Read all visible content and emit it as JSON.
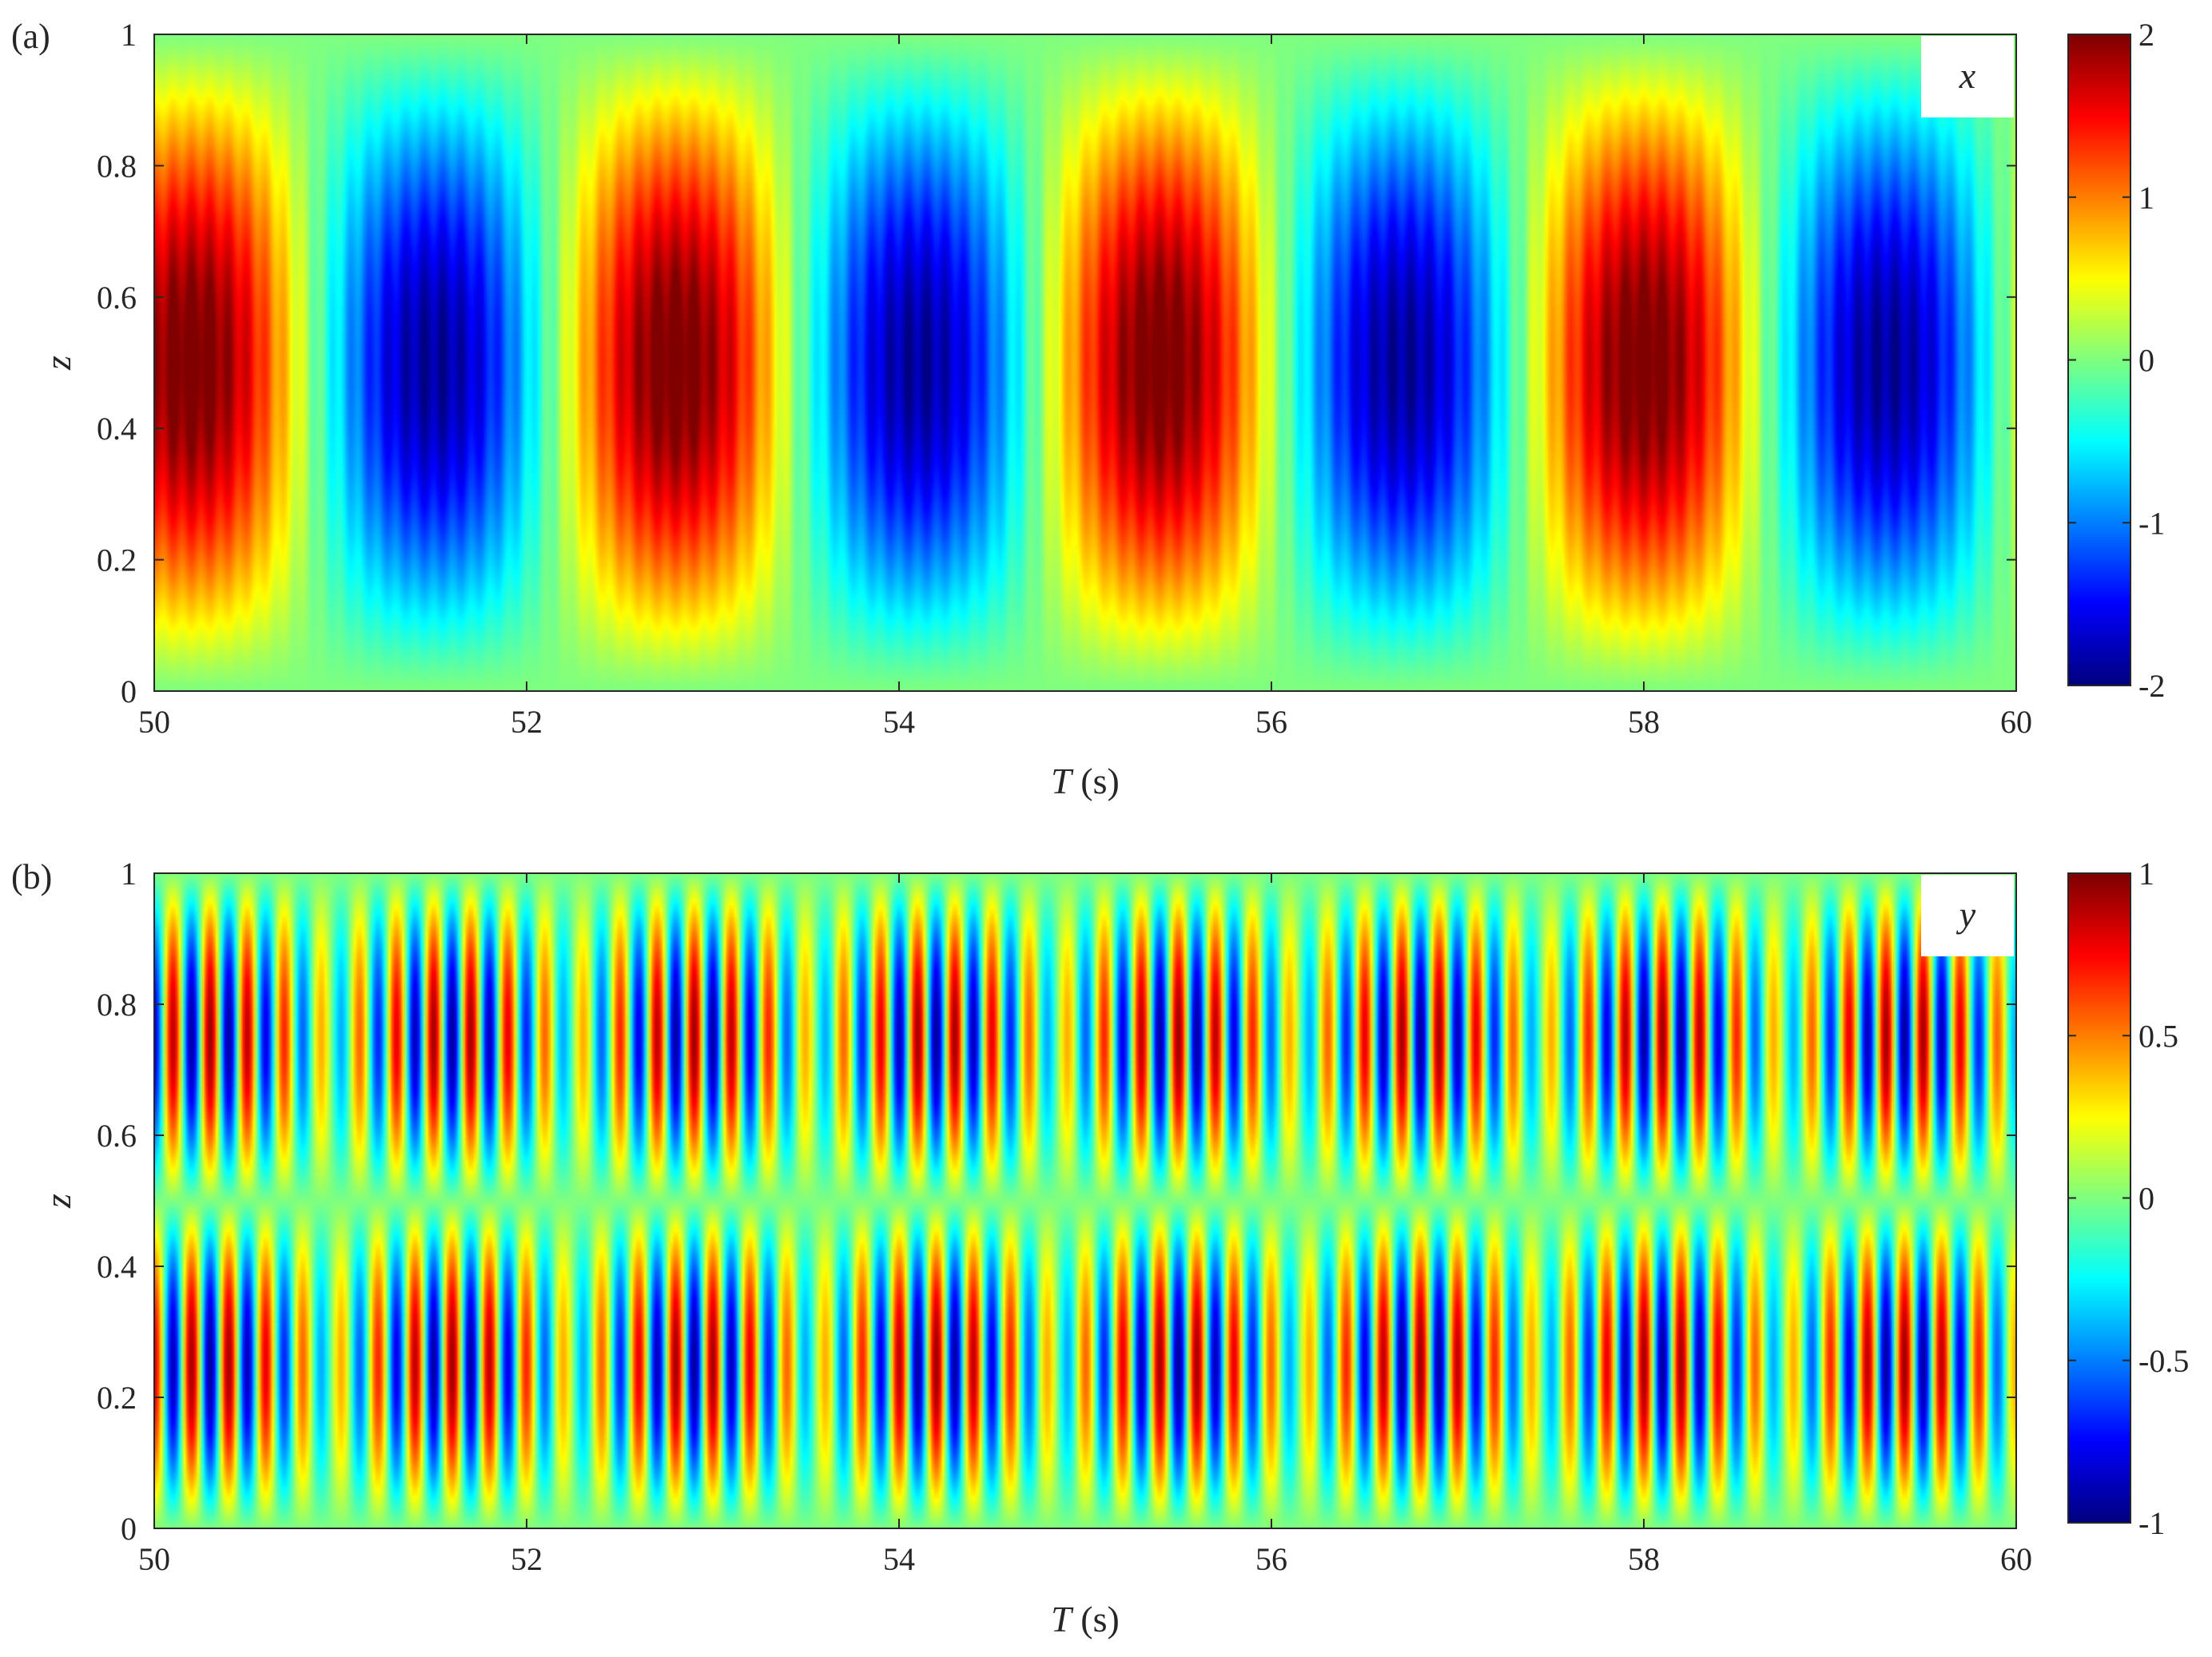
{
  "chart_data": [
    {
      "type": "heatmap",
      "panel_label": "(a)",
      "variable_label": "x",
      "xlabel_italic": "T",
      "xlabel_unit": " (s)",
      "ylabel": "z",
      "xlim": [
        50,
        60
      ],
      "ylim": [
        0,
        1
      ],
      "xticks": [
        "50",
        "52",
        "54",
        "56",
        "58",
        "60"
      ],
      "yticks": [
        "0",
        "0.2",
        "0.4",
        "0.6",
        "0.8",
        "1"
      ],
      "colorbar": {
        "min": -2,
        "max": 2,
        "ticks": [
          "-2",
          "-1",
          "0",
          "1",
          "2"
        ],
        "colormap": "jet"
      },
      "field": {
        "description_model": "slow mode sin(pi z) modulated + fast oscillation",
        "slow_amplitude": 1.9,
        "slow_period_s": 2.6,
        "slow_peak_time_s": 50.2,
        "fast_period_s": 0.1,
        "fast_amplitude": 0.15,
        "offset": 0.2
      }
    },
    {
      "type": "heatmap",
      "panel_label": "(b)",
      "variable_label": "y",
      "xlabel_italic": "T",
      "xlabel_unit": " (s)",
      "ylabel": "z",
      "xlim": [
        50,
        60
      ],
      "ylim": [
        0,
        1
      ],
      "xticks": [
        "50",
        "52",
        "54",
        "56",
        "58",
        "60"
      ],
      "yticks": [
        "0",
        "0.2",
        "0.4",
        "0.6",
        "0.8",
        "1"
      ],
      "colorbar": {
        "min": -1,
        "max": 1,
        "ticks": [
          "-1",
          "-0.5",
          "0",
          "0.5",
          "1"
        ],
        "colormap": "jet"
      },
      "field": {
        "description_model": "second mode sin(2 pi z) with fast oscillation and beating envelope",
        "fast_period_s": 0.2,
        "envelope_period_s": 1.3,
        "envelope_peak_time_s": 50.3,
        "amplitude": 0.95
      }
    }
  ],
  "colors": {
    "axis": "#262626",
    "background": "#ffffff",
    "label_box": "#ffffff"
  }
}
